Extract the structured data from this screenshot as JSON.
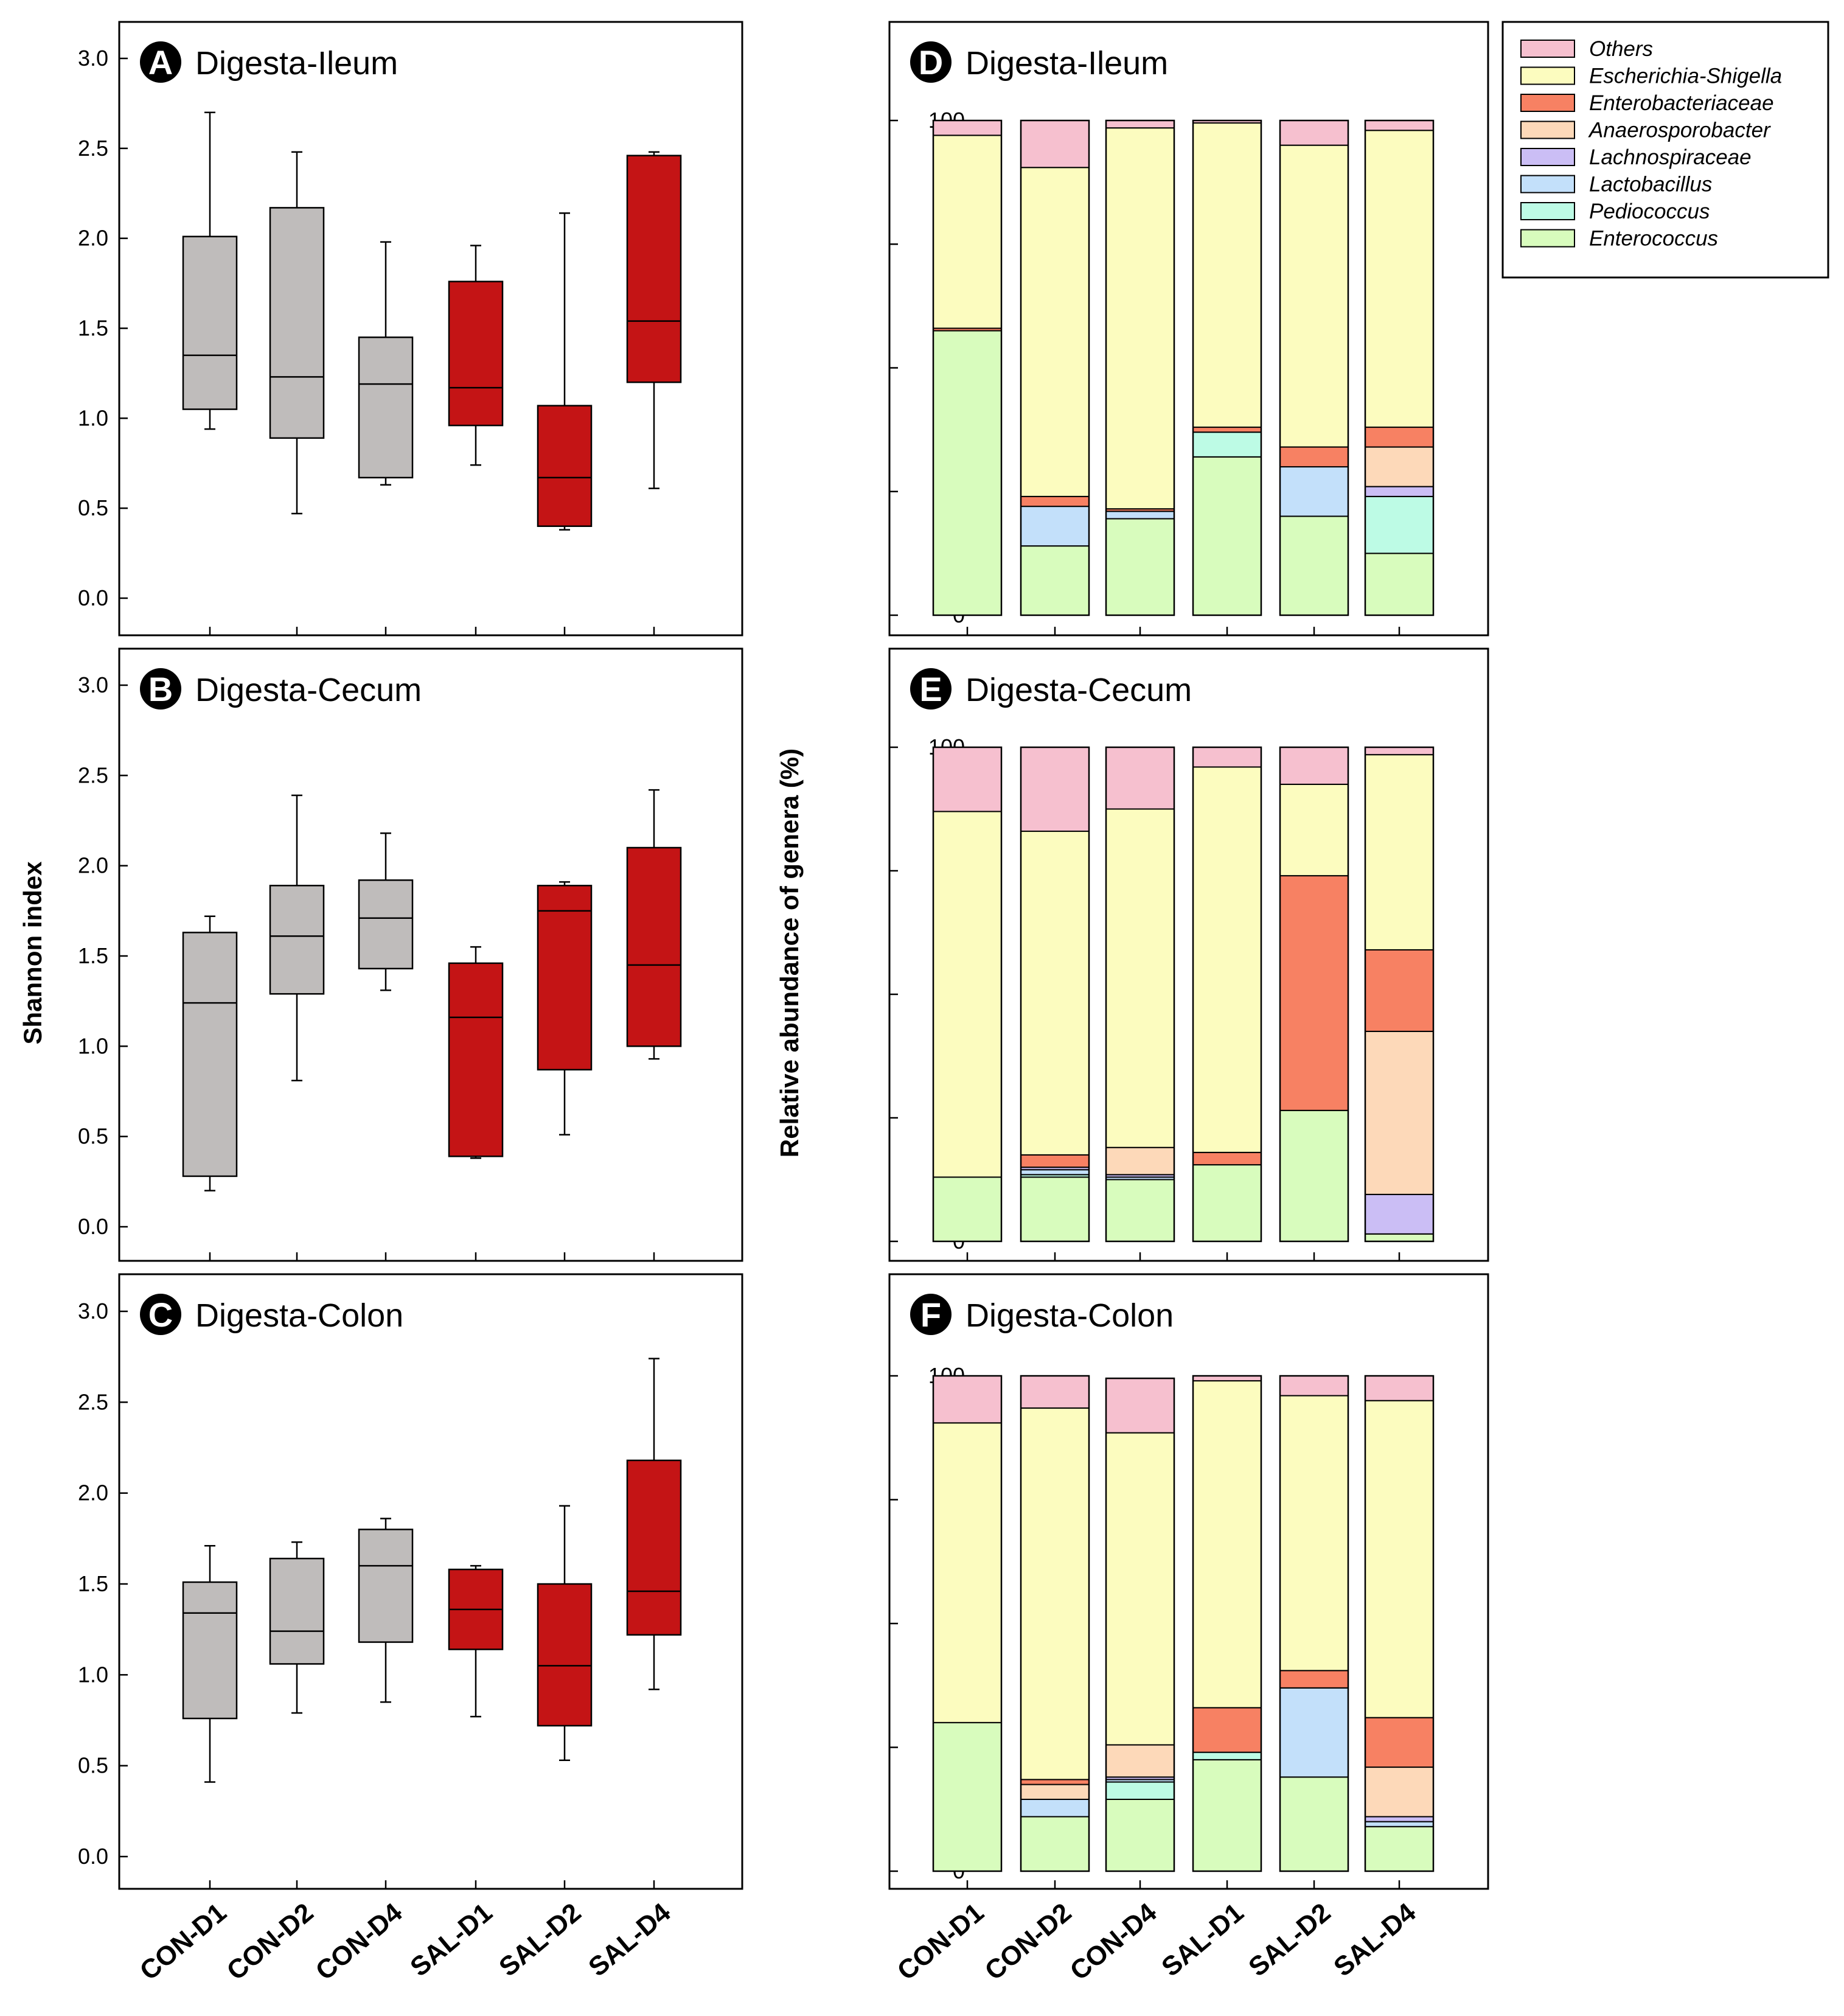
{
  "colors": {
    "con_box": "#bfbcbb",
    "sal_box": "#c41415",
    "Others": "#f6c0cf",
    "Escherichia-Shigella": "#fcfcbf",
    "Enterobacteriaceae": "#f78163",
    "Anaerosporobacter": "#fdd9b9",
    "Lachnospiraceae": "#cbbef5",
    "Lactobacillus": "#c3e0fa",
    "Pediococcus": "#bdfbe5",
    "Enterococcus": "#d8fcbd"
  },
  "groups": [
    "CON-D1",
    "CON-D2",
    "CON-D4",
    "SAL-D1",
    "SAL-D2",
    "SAL-D4"
  ],
  "shannon_axis_label": "Shannon index",
  "abundance_axis_label": "Relative abundance of genera (%)",
  "legend": [
    "Others",
    "Escherichia-Shigella",
    "Enterobacteriaceae",
    "Anaerosporobacter",
    "Lachnospiraceae",
    "Lactobacillus",
    "Pediococcus",
    "Enterococcus"
  ],
  "chart_data": [
    {
      "type": "box",
      "letter": "A",
      "title": "Digesta-Ileum",
      "ylabel": "Shannon index",
      "ylim": [
        0,
        3.0
      ],
      "yticks": [
        "0.0",
        "0.5",
        "1.0",
        "1.5",
        "2.0",
        "2.5",
        "3.0"
      ],
      "categories": [
        "CON-D1",
        "CON-D2",
        "CON-D4",
        "SAL-D1",
        "SAL-D2",
        "SAL-D4"
      ],
      "boxes": [
        {
          "min": 0.94,
          "q1": 1.05,
          "median": 1.35,
          "q3": 2.01,
          "max": 2.7
        },
        {
          "min": 0.47,
          "q1": 0.89,
          "median": 1.23,
          "q3": 2.17,
          "max": 2.48
        },
        {
          "min": 0.63,
          "q1": 0.67,
          "median": 1.19,
          "q3": 1.45,
          "max": 1.98
        },
        {
          "min": 0.74,
          "q1": 0.96,
          "median": 1.17,
          "q3": 1.76,
          "max": 1.96
        },
        {
          "min": 0.38,
          "q1": 0.4,
          "median": 0.67,
          "q3": 1.07,
          "max": 2.14
        },
        {
          "min": 0.61,
          "q1": 1.2,
          "median": 1.54,
          "q3": 2.46,
          "max": 2.48
        }
      ]
    },
    {
      "type": "box",
      "letter": "B",
      "title": "Digesta-Cecum",
      "ylabel": "Shannon index",
      "ylim": [
        0,
        3.0
      ],
      "yticks": [
        "0.0",
        "0.5",
        "1.0",
        "1.5",
        "2.0",
        "2.5",
        "3.0"
      ],
      "categories": [
        "CON-D1",
        "CON-D2",
        "CON-D4",
        "SAL-D1",
        "SAL-D2",
        "SAL-D4"
      ],
      "boxes": [
        {
          "min": 0.2,
          "q1": 0.28,
          "median": 1.24,
          "q3": 1.63,
          "max": 1.72
        },
        {
          "min": 0.81,
          "q1": 1.29,
          "median": 1.61,
          "q3": 1.89,
          "max": 2.39
        },
        {
          "min": 1.31,
          "q1": 1.43,
          "median": 1.71,
          "q3": 1.92,
          "max": 2.18
        },
        {
          "min": 0.38,
          "q1": 0.39,
          "median": 1.16,
          "q3": 1.46,
          "max": 1.55
        },
        {
          "min": 0.51,
          "q1": 0.87,
          "median": 1.75,
          "q3": 1.89,
          "max": 1.91
        },
        {
          "min": 0.93,
          "q1": 1.0,
          "median": 1.45,
          "q3": 2.1,
          "max": 2.42
        }
      ]
    },
    {
      "type": "box",
      "letter": "C",
      "title": "Digesta-Colon",
      "ylabel": "Shannon index",
      "ylim": [
        0,
        3.0
      ],
      "yticks": [
        "0.0",
        "0.5",
        "1.0",
        "1.5",
        "2.0",
        "2.5",
        "3.0"
      ],
      "categories": [
        "CON-D1",
        "CON-D2",
        "CON-D4",
        "SAL-D1",
        "SAL-D2",
        "SAL-D4"
      ],
      "boxes": [
        {
          "min": 0.41,
          "q1": 0.76,
          "median": 1.34,
          "q3": 1.51,
          "max": 1.71
        },
        {
          "min": 0.79,
          "q1": 1.06,
          "median": 1.24,
          "q3": 1.64,
          "max": 1.73
        },
        {
          "min": 0.85,
          "q1": 1.18,
          "median": 1.6,
          "q3": 1.8,
          "max": 1.86
        },
        {
          "min": 0.77,
          "q1": 1.14,
          "median": 1.36,
          "q3": 1.58,
          "max": 1.6
        },
        {
          "min": 0.53,
          "q1": 0.72,
          "median": 1.05,
          "q3": 1.5,
          "max": 1.93
        },
        {
          "min": 0.92,
          "q1": 1.22,
          "median": 1.46,
          "q3": 2.18,
          "max": 2.74
        }
      ]
    },
    {
      "type": "stacked-bar",
      "letter": "D",
      "title": "Digesta-Ileum",
      "ylabel": "Relative abundance of genera (%)",
      "ylim": [
        0,
        100
      ],
      "yticks": [
        "0",
        "25",
        "50",
        "75",
        "100"
      ],
      "categories": [
        "CON-D1",
        "CON-D2",
        "CON-D4",
        "SAL-D1",
        "SAL-D2",
        "SAL-D4"
      ],
      "series": [
        {
          "name": "Enterococcus",
          "values": [
            57.5,
            14.0,
            19.5,
            32.0,
            20.0,
            12.5
          ]
        },
        {
          "name": "Pediococcus",
          "values": [
            0,
            0,
            0,
            5.0,
            0,
            11.5
          ]
        },
        {
          "name": "Lactobacillus",
          "values": [
            0,
            8.0,
            1.5,
            0,
            10.0,
            0
          ]
        },
        {
          "name": "Lachnospiraceae",
          "values": [
            0,
            0,
            0,
            0,
            0,
            2.0
          ]
        },
        {
          "name": "Anaerosporobacter",
          "values": [
            0,
            0,
            0,
            0,
            0,
            8.0
          ]
        },
        {
          "name": "Enterobacteriaceae",
          "values": [
            0.5,
            2.0,
            0.5,
            1.0,
            4.0,
            4.0
          ]
        },
        {
          "name": "Escherichia-Shigella",
          "values": [
            39.0,
            66.5,
            77.0,
            61.5,
            61.0,
            60.0
          ]
        },
        {
          "name": "Others",
          "values": [
            3.0,
            9.5,
            1.5,
            0.5,
            5.0,
            2.0
          ]
        }
      ]
    },
    {
      "type": "stacked-bar",
      "letter": "E",
      "title": "Digesta-Cecum",
      "ylabel": "Relative abundance of genera (%)",
      "ylim": [
        0,
        100
      ],
      "yticks": [
        "0",
        "25",
        "50",
        "75",
        "100"
      ],
      "categories": [
        "CON-D1",
        "CON-D2",
        "CON-D4",
        "SAL-D1",
        "SAL-D2",
        "SAL-D4"
      ],
      "series": [
        {
          "name": "Enterococcus",
          "values": [
            13.0,
            13.0,
            12.5,
            15.5,
            26.5,
            1.5
          ]
        },
        {
          "name": "Pediococcus",
          "values": [
            0,
            0.5,
            0,
            0,
            0,
            0
          ]
        },
        {
          "name": "Lactobacillus",
          "values": [
            0,
            1.0,
            0.5,
            0,
            0,
            0
          ]
        },
        {
          "name": "Lachnospiraceae",
          "values": [
            0,
            0.5,
            0.5,
            0,
            0,
            8.0
          ]
        },
        {
          "name": "Anaerosporobacter",
          "values": [
            0,
            0,
            5.5,
            0,
            0,
            33.0
          ]
        },
        {
          "name": "Enterobacteriaceae",
          "values": [
            0,
            2.5,
            0,
            2.5,
            47.5,
            16.5
          ]
        },
        {
          "name": "Escherichia-Shigella",
          "values": [
            74.0,
            65.5,
            68.5,
            78.0,
            18.5,
            39.5
          ]
        },
        {
          "name": "Others",
          "values": [
            13.0,
            17.0,
            12.5,
            4.0,
            7.5,
            1.5
          ]
        }
      ]
    },
    {
      "type": "stacked-bar",
      "letter": "F",
      "title": "Digesta-Colon",
      "ylabel": "Relative abundance of genera (%)",
      "ylim": [
        0,
        100
      ],
      "yticks": [
        "0",
        "25",
        "50",
        "75",
        "100"
      ],
      "categories": [
        "CON-D1",
        "CON-D2",
        "CON-D4",
        "SAL-D1",
        "SAL-D2",
        "SAL-D4"
      ],
      "series": [
        {
          "name": "Enterococcus",
          "values": [
            30.0,
            11.0,
            14.5,
            22.5,
            19.0,
            9.0
          ]
        },
        {
          "name": "Pediococcus",
          "values": [
            0,
            0,
            3.5,
            1.5,
            0,
            0
          ]
        },
        {
          "name": "Lactobacillus",
          "values": [
            0,
            3.5,
            0.5,
            0,
            18.0,
            1.0
          ]
        },
        {
          "name": "Lachnospiraceae",
          "values": [
            0,
            0,
            0.5,
            0,
            0,
            1.0
          ]
        },
        {
          "name": "Anaerosporobacter",
          "values": [
            0,
            3.0,
            6.5,
            0,
            0,
            10.0
          ]
        },
        {
          "name": "Enterobacteriaceae",
          "values": [
            0,
            1.0,
            0,
            9.0,
            3.5,
            10.0
          ]
        },
        {
          "name": "Escherichia-Shigella",
          "values": [
            60.5,
            75.0,
            63.0,
            66.0,
            55.5,
            64.0
          ]
        },
        {
          "name": "Others",
          "values": [
            9.5,
            6.5,
            11.0,
            1.0,
            4.0,
            5.0
          ]
        }
      ]
    }
  ]
}
